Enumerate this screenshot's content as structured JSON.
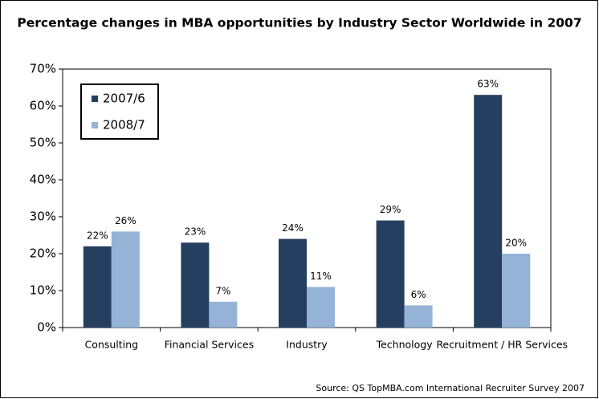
{
  "chart_data": {
    "type": "bar",
    "title": "Percentage changes in MBA opportunities by Industry Sector Worldwide in 2007",
    "source": "Source: QS TopMBA.com International Recruiter Survey 2007",
    "categories": [
      "Consulting",
      "Financial Services",
      "Industry",
      "Technology",
      "Recruitment / HR Services"
    ],
    "series": [
      {
        "name": "2007/6",
        "color": "#243f60",
        "values": [
          22,
          23,
          24,
          29,
          63
        ],
        "value_labels": [
          "22%",
          "23%",
          "24%",
          "29%",
          "63%"
        ]
      },
      {
        "name": "2008/7",
        "color": "#95b3d7",
        "values": [
          26,
          7,
          11,
          6,
          20
        ],
        "value_labels": [
          "26%",
          "7%",
          "11%",
          "6%",
          "20%"
        ]
      }
    ],
    "ylim": [
      0,
      70
    ],
    "yticks": [
      {
        "value": 0,
        "label": "0%"
      },
      {
        "value": 10,
        "label": "10%"
      },
      {
        "value": 20,
        "label": "20%"
      },
      {
        "value": 30,
        "label": "30%"
      },
      {
        "value": 40,
        "label": "40%"
      },
      {
        "value": 50,
        "label": "50%"
      },
      {
        "value": 60,
        "label": "60%"
      },
      {
        "value": 70,
        "label": "70%"
      }
    ],
    "legend": "upper left",
    "grid": false
  }
}
